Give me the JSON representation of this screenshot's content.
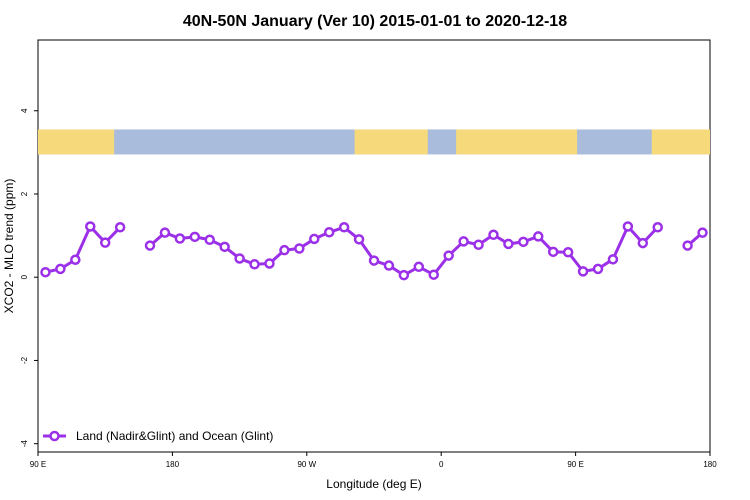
{
  "chart_data": {
    "type": "line",
    "title": "40N-50N January (Ver 10)   2015-01-01 to 2020-12-18",
    "xlabel": "Longitude (deg E)",
    "ylabel": "XCO2 - MLO trend (ppm)",
    "xlim": [
      90,
      540
    ],
    "ylim": [
      -4.2,
      5.7
    ],
    "x_ticks": [
      {
        "value": 90,
        "label": "90 E"
      },
      {
        "value": 180,
        "label": "180"
      },
      {
        "value": 270,
        "label": "90 W"
      },
      {
        "value": 360,
        "label": "0"
      },
      {
        "value": 450,
        "label": "90 E"
      },
      {
        "value": 540,
        "label": "180"
      }
    ],
    "y_ticks": [
      {
        "value": -4,
        "label": "-4"
      },
      {
        "value": -2,
        "label": "-2"
      },
      {
        "value": 0,
        "label": "0"
      },
      {
        "value": 2,
        "label": "2"
      },
      {
        "value": 4,
        "label": "4"
      }
    ],
    "grid": false,
    "legend_position": "bottom-left",
    "map_strip": {
      "y_range": [
        2.95,
        3.55
      ],
      "land_color": "#f5d97a",
      "ocean_color": "#a9bcdc",
      "land_segments": [
        [
          90,
          141
        ],
        [
          302,
          351
        ],
        [
          370,
          451
        ],
        [
          501,
          540
        ]
      ]
    },
    "series": [
      {
        "name": "Land (Nadir&Glint) and Ocean (Glint)",
        "color": "#9b30e8",
        "segments": [
          {
            "x": [
              95,
              105,
              115,
              125,
              135,
              145
            ],
            "y": [
              0.12,
              0.2,
              0.42,
              1.22,
              0.83,
              1.2
            ]
          },
          {
            "x": [
              165,
              175,
              185,
              195,
              205,
              215,
              225,
              235,
              245,
              255,
              265,
              275,
              285,
              295,
              305,
              315,
              325,
              335,
              345,
              355,
              365,
              375,
              385,
              395,
              405,
              415,
              425,
              435,
              445,
              455,
              465,
              475,
              485,
              495,
              505
            ],
            "y": [
              0.76,
              1.07,
              0.93,
              0.97,
              0.9,
              0.73,
              0.45,
              0.31,
              0.33,
              0.65,
              0.69,
              0.92,
              1.08,
              1.2,
              0.91,
              0.4,
              0.28,
              0.05,
              0.25,
              0.06,
              0.52,
              0.86,
              0.78,
              1.02,
              0.8,
              0.85,
              0.98,
              0.61,
              0.6,
              0.14,
              0.2,
              0.43,
              1.22,
              0.82,
              1.2
            ]
          },
          {
            "x": [
              525,
              535
            ],
            "y": [
              0.76,
              1.07
            ]
          }
        ]
      }
    ]
  }
}
